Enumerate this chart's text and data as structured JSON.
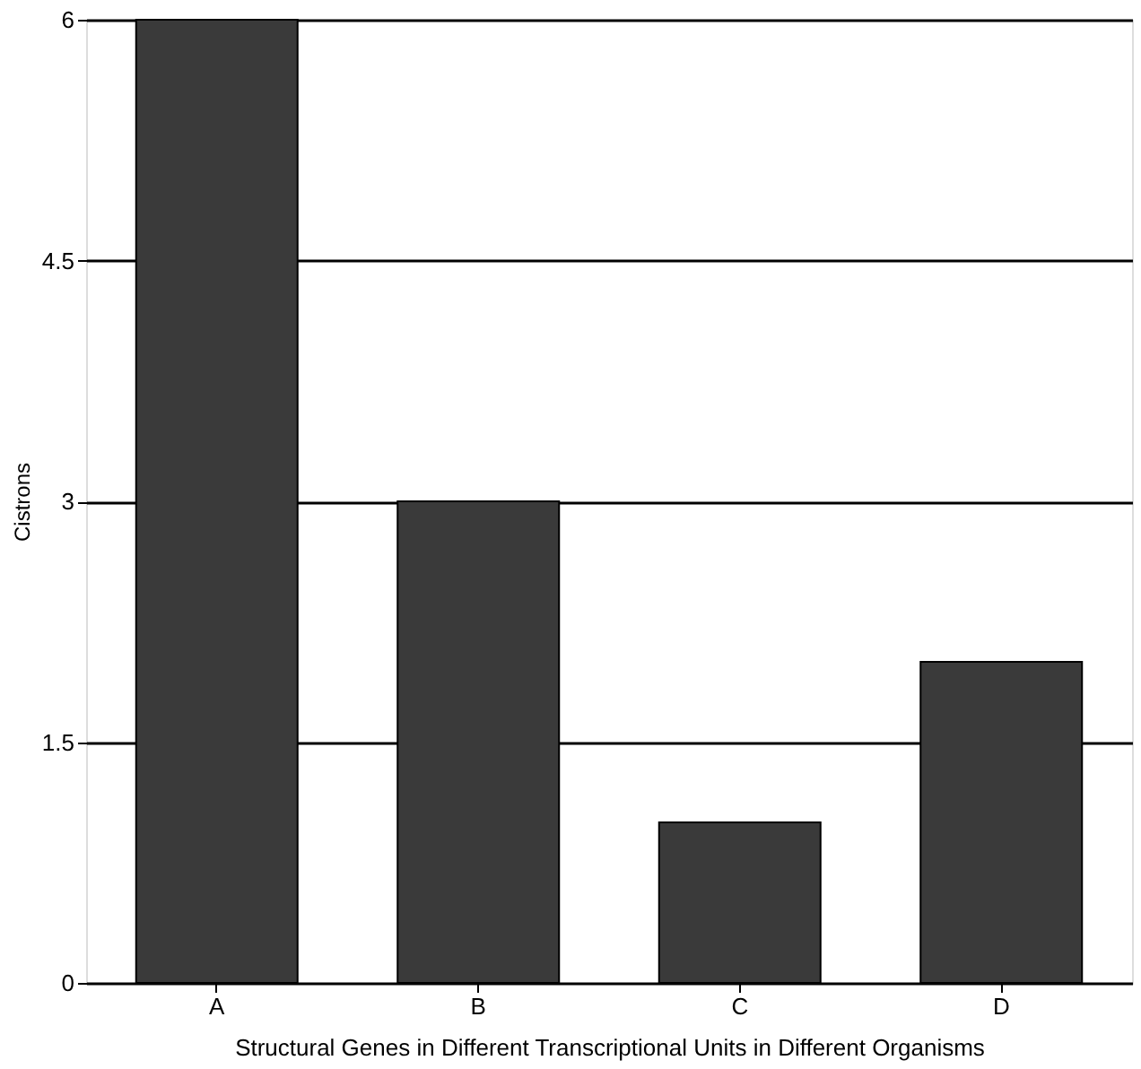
{
  "chart_data": {
    "type": "bar",
    "xlabel": "Structural Genes in Different Transcriptional Units in Different Organisms",
    "ylabel": "Cistrons",
    "categories": [
      "A",
      "B",
      "C",
      "D"
    ],
    "values": [
      6,
      3,
      1,
      2
    ],
    "color": "#3a3a3a",
    "ylim": [
      0,
      6
    ],
    "yticks": [
      0,
      1.5,
      3,
      4.5,
      6
    ],
    "grid": "y"
  }
}
